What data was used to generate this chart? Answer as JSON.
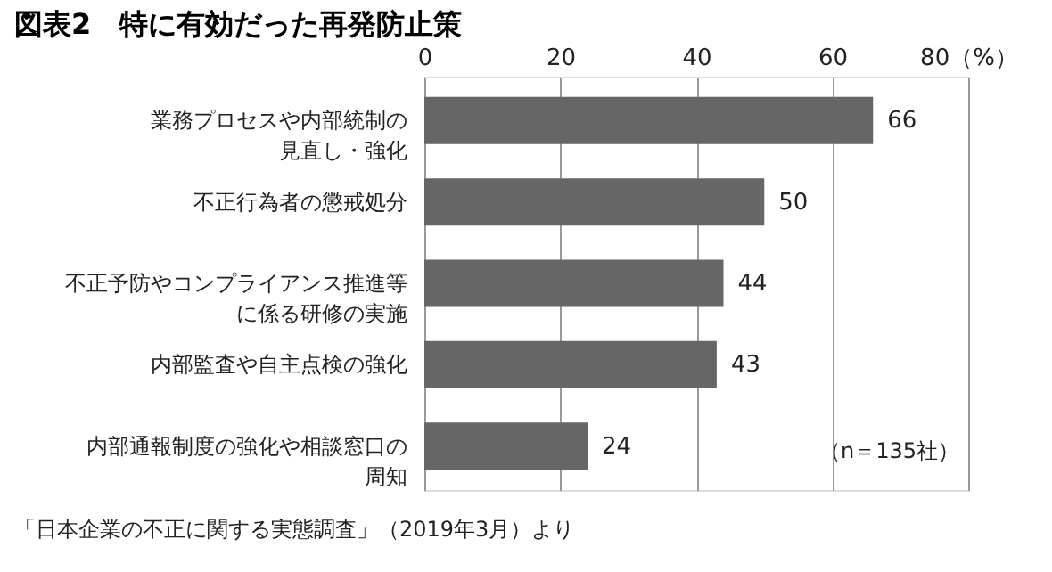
{
  "chart_data": {
    "type": "bar",
    "orientation": "horizontal",
    "title": "図表2　特に有効だった再発防止策",
    "categories": [
      "業務プロセスや内部統制の見直し・強化",
      "不正行為者の懲戒処分",
      "不正予防やコンプライアンス推進等に係る研修の実施",
      "内部監査や自主点検の強化",
      "内部通報制度の強化や相談窓口の周知"
    ],
    "values": [
      66,
      50,
      44,
      43,
      24
    ],
    "color": "#666666",
    "xlim": [
      0,
      80
    ],
    "xticks": [
      0,
      20,
      40,
      60,
      {
        "value": 80,
        "label": "80（%）"
      }
    ],
    "grid": "x",
    "data_labels": true,
    "annotations": [
      "（n＝135社）",
      "「日本企業の不正に関する実態調査」（2019年3月）より"
    ]
  }
}
